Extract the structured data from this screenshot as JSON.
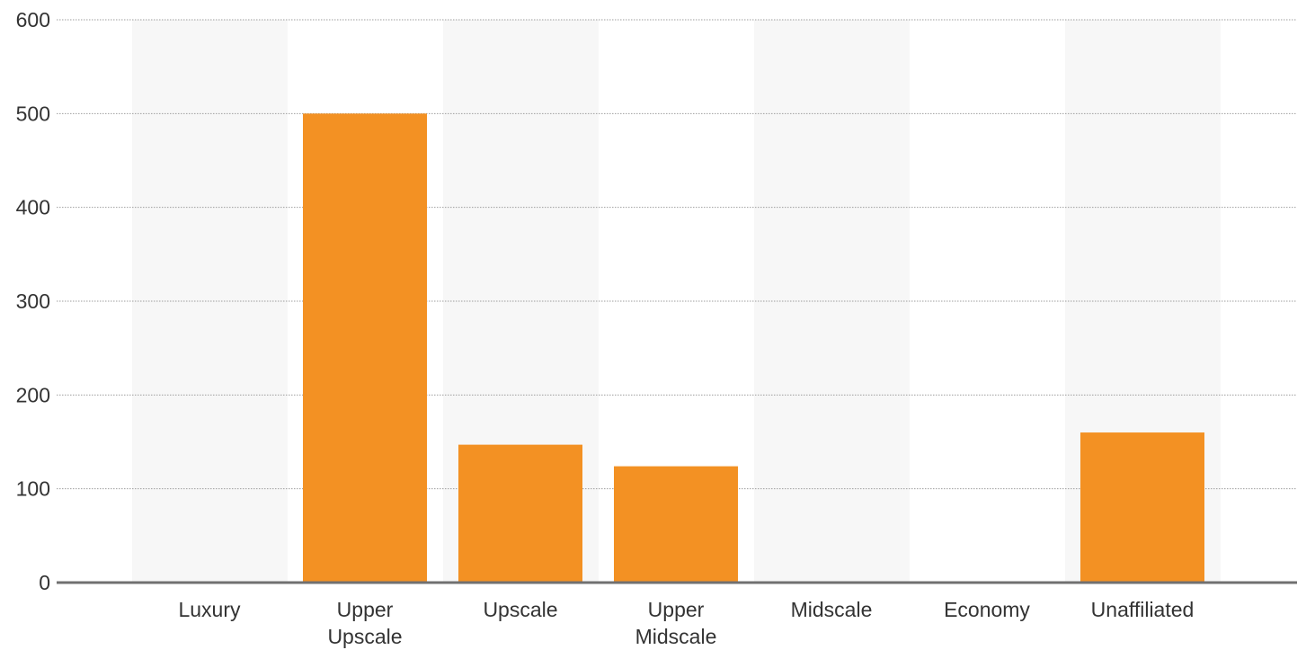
{
  "chart_data": {
    "type": "bar",
    "title": "",
    "xlabel": "",
    "ylabel": "",
    "categories": [
      "Luxury",
      "Upper Upscale",
      "Upscale",
      "Upper Midscale",
      "Midscale",
      "Economy",
      "Unaffiliated"
    ],
    "category_label_lines": [
      [
        "Luxury"
      ],
      [
        "Upper",
        "Upscale"
      ],
      [
        "Upscale"
      ],
      [
        "Upper",
        "Midscale"
      ],
      [
        "Midscale"
      ],
      [
        "Economy"
      ],
      [
        "Unaffiliated"
      ]
    ],
    "values": [
      0,
      500,
      147,
      124,
      0,
      0,
      160
    ],
    "ylim": [
      0,
      600
    ],
    "yticks": [
      0,
      100,
      200,
      300,
      400,
      500,
      600
    ],
    "grid": true,
    "legend": "none",
    "colors": {
      "bar": "#F39123",
      "band": "#F7F7F7",
      "gridline": "#9E9E9E",
      "axis": "#707070",
      "text": "#333333"
    }
  }
}
